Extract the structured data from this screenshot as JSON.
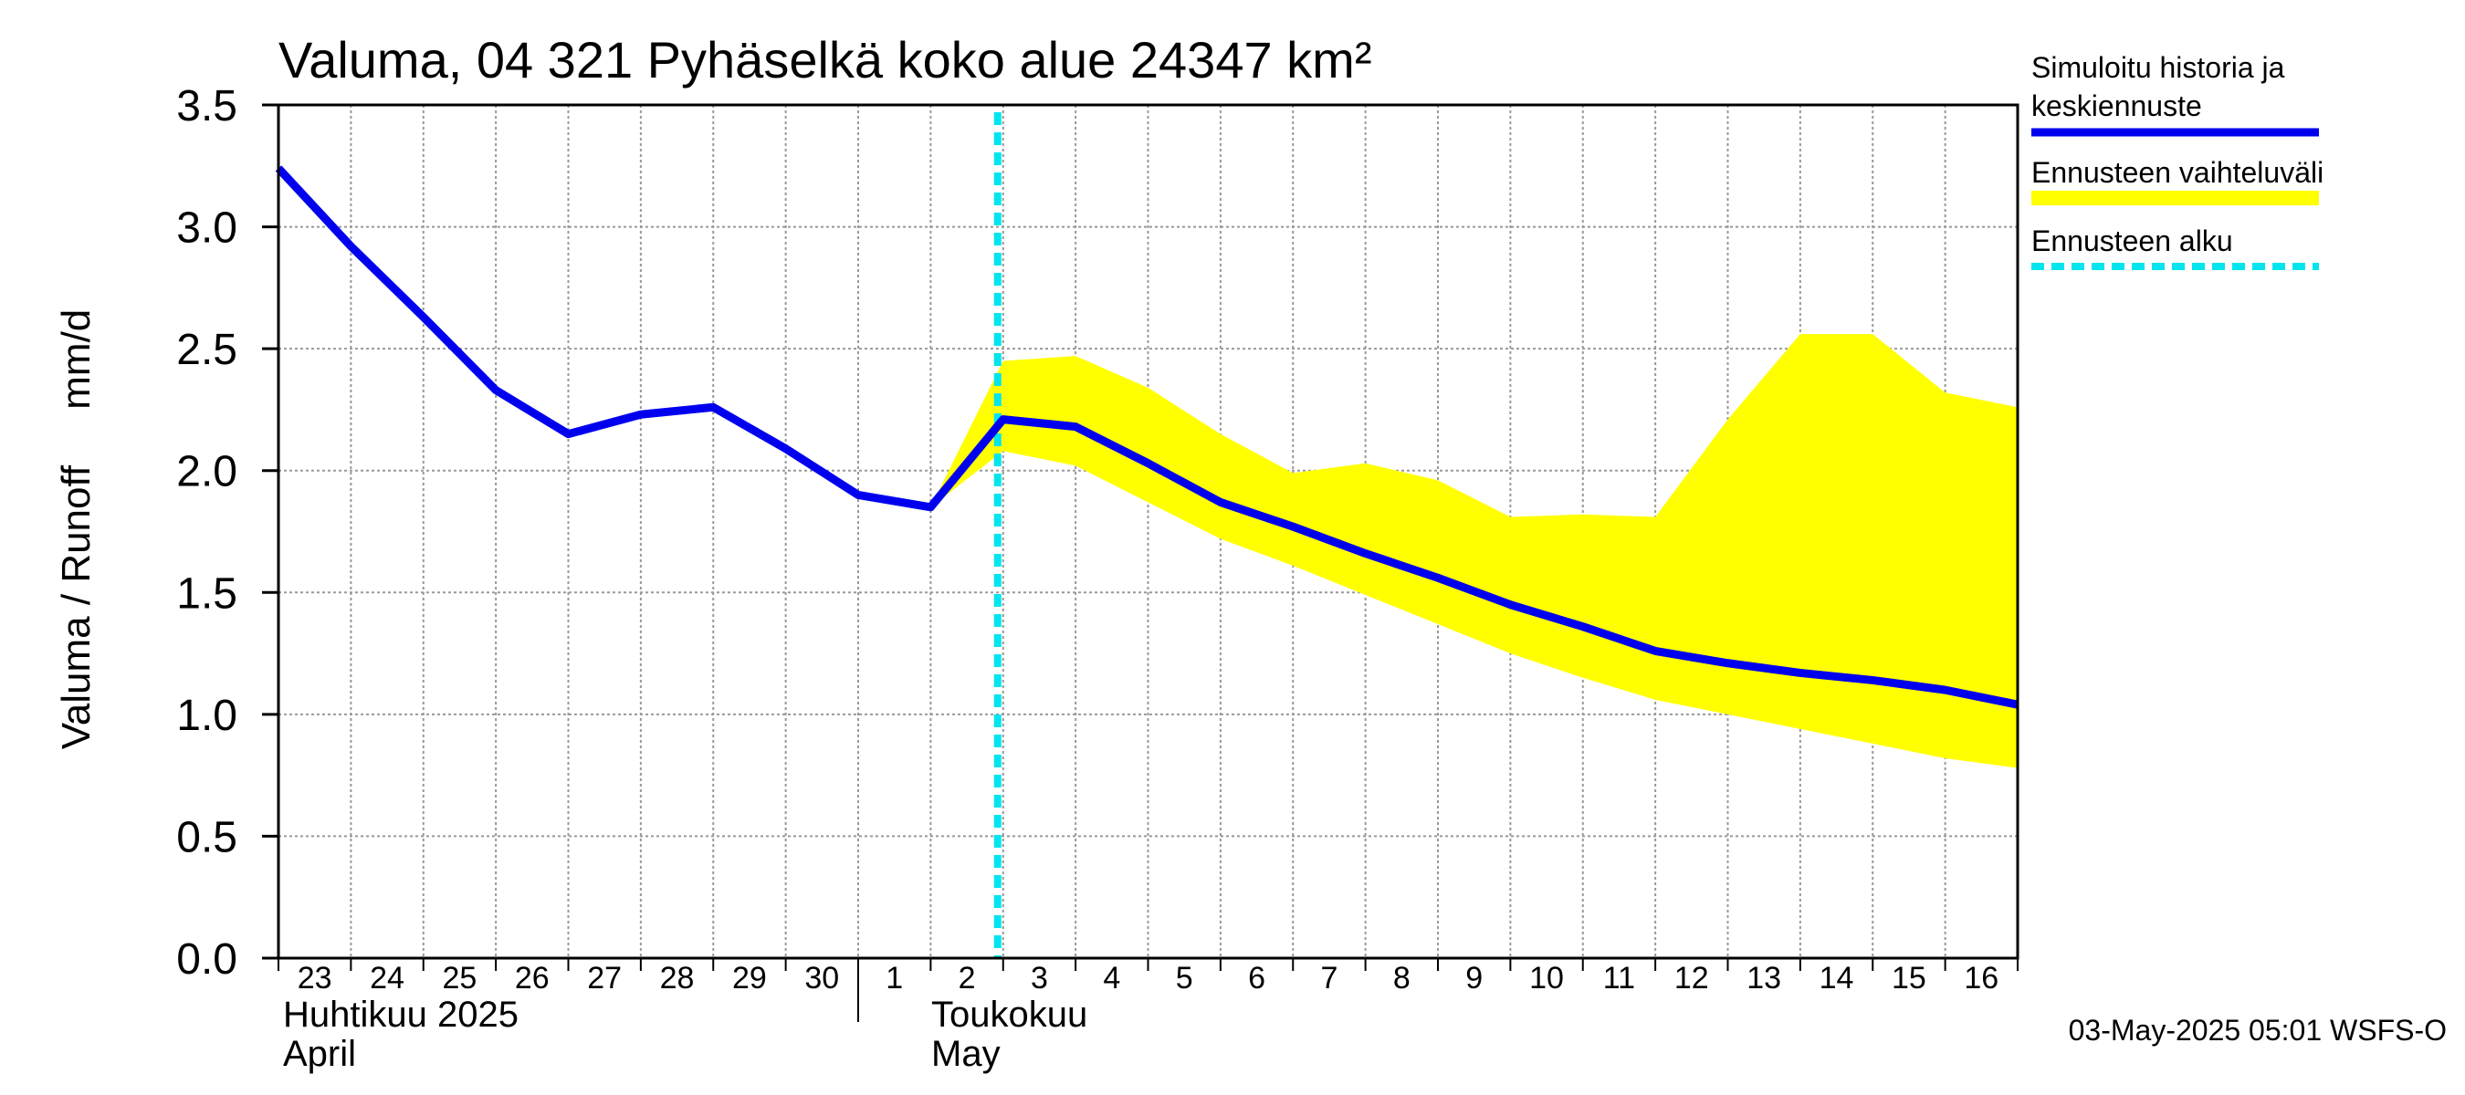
{
  "chart_data": {
    "type": "line",
    "title": "Valuma, 04 321 Pyhäselkä koko alue 24347 km²",
    "ylabel": "Valuma / Runoff     mm/d",
    "ylim": [
      0,
      3.5
    ],
    "yticks": [
      "0.0",
      "0.5",
      "1.0",
      "1.5",
      "2.0",
      "2.5",
      "3.0",
      "3.5"
    ],
    "grid": true,
    "x_start_date": "2025-04-23",
    "x_end_date": "2025-05-17",
    "x_tick_labels": [
      "23",
      "24",
      "25",
      "26",
      "27",
      "28",
      "29",
      "30",
      "1",
      "2",
      "3",
      "4",
      "5",
      "6",
      "7",
      "8",
      "9",
      "10",
      "11",
      "12",
      "13",
      "14",
      "15",
      "16"
    ],
    "months": [
      {
        "label1": "Huhtikuu  2025",
        "label2": "April"
      },
      {
        "label1": "Toukokuu",
        "label2": "May"
      }
    ],
    "series": [
      {
        "name": "Simuloitu historia ja keskiennuste",
        "color": "#0000ee",
        "x": [
          "2025-04-23",
          "2025-04-24",
          "2025-04-25",
          "2025-04-26",
          "2025-04-27",
          "2025-04-28",
          "2025-04-29",
          "2025-04-30",
          "2025-05-01",
          "2025-05-02",
          "2025-05-03",
          "2025-05-04",
          "2025-05-05",
          "2025-05-06",
          "2025-05-07",
          "2025-05-08",
          "2025-05-09",
          "2025-05-10",
          "2025-05-11",
          "2025-05-12",
          "2025-05-13",
          "2025-05-14",
          "2025-05-15",
          "2025-05-16",
          "2025-05-17"
        ],
        "y": [
          3.24,
          2.92,
          2.63,
          2.33,
          2.15,
          2.23,
          2.26,
          2.09,
          1.9,
          1.85,
          2.21,
          2.18,
          2.03,
          1.87,
          1.77,
          1.66,
          1.56,
          1.45,
          1.36,
          1.26,
          1.21,
          1.17,
          1.14,
          1.1,
          1.04
        ]
      }
    ],
    "band": {
      "name": "Ennusteen vaihteluväli",
      "color": "#ffff00",
      "x": [
        "2025-05-02",
        "2025-05-03",
        "2025-05-04",
        "2025-05-05",
        "2025-05-06",
        "2025-05-07",
        "2025-05-08",
        "2025-05-09",
        "2025-05-10",
        "2025-05-11",
        "2025-05-12",
        "2025-05-13",
        "2025-05-14",
        "2025-05-15",
        "2025-05-16",
        "2025-05-17"
      ],
      "upper": [
        1.85,
        2.45,
        2.47,
        2.34,
        2.15,
        1.99,
        2.03,
        1.96,
        1.81,
        1.82,
        1.81,
        2.21,
        2.56,
        2.56,
        2.32,
        2.26
      ],
      "lower": [
        1.85,
        2.08,
        2.02,
        1.87,
        1.72,
        1.61,
        1.49,
        1.37,
        1.25,
        1.15,
        1.06,
        1.0,
        0.94,
        0.88,
        0.82,
        0.78
      ]
    },
    "forecast_start": {
      "name": "Ennusteen alku",
      "date": "2025-05-03",
      "color": "#00e5ee"
    },
    "legend_position": "right"
  },
  "footer": "03-May-2025 05:01 WSFS-O"
}
